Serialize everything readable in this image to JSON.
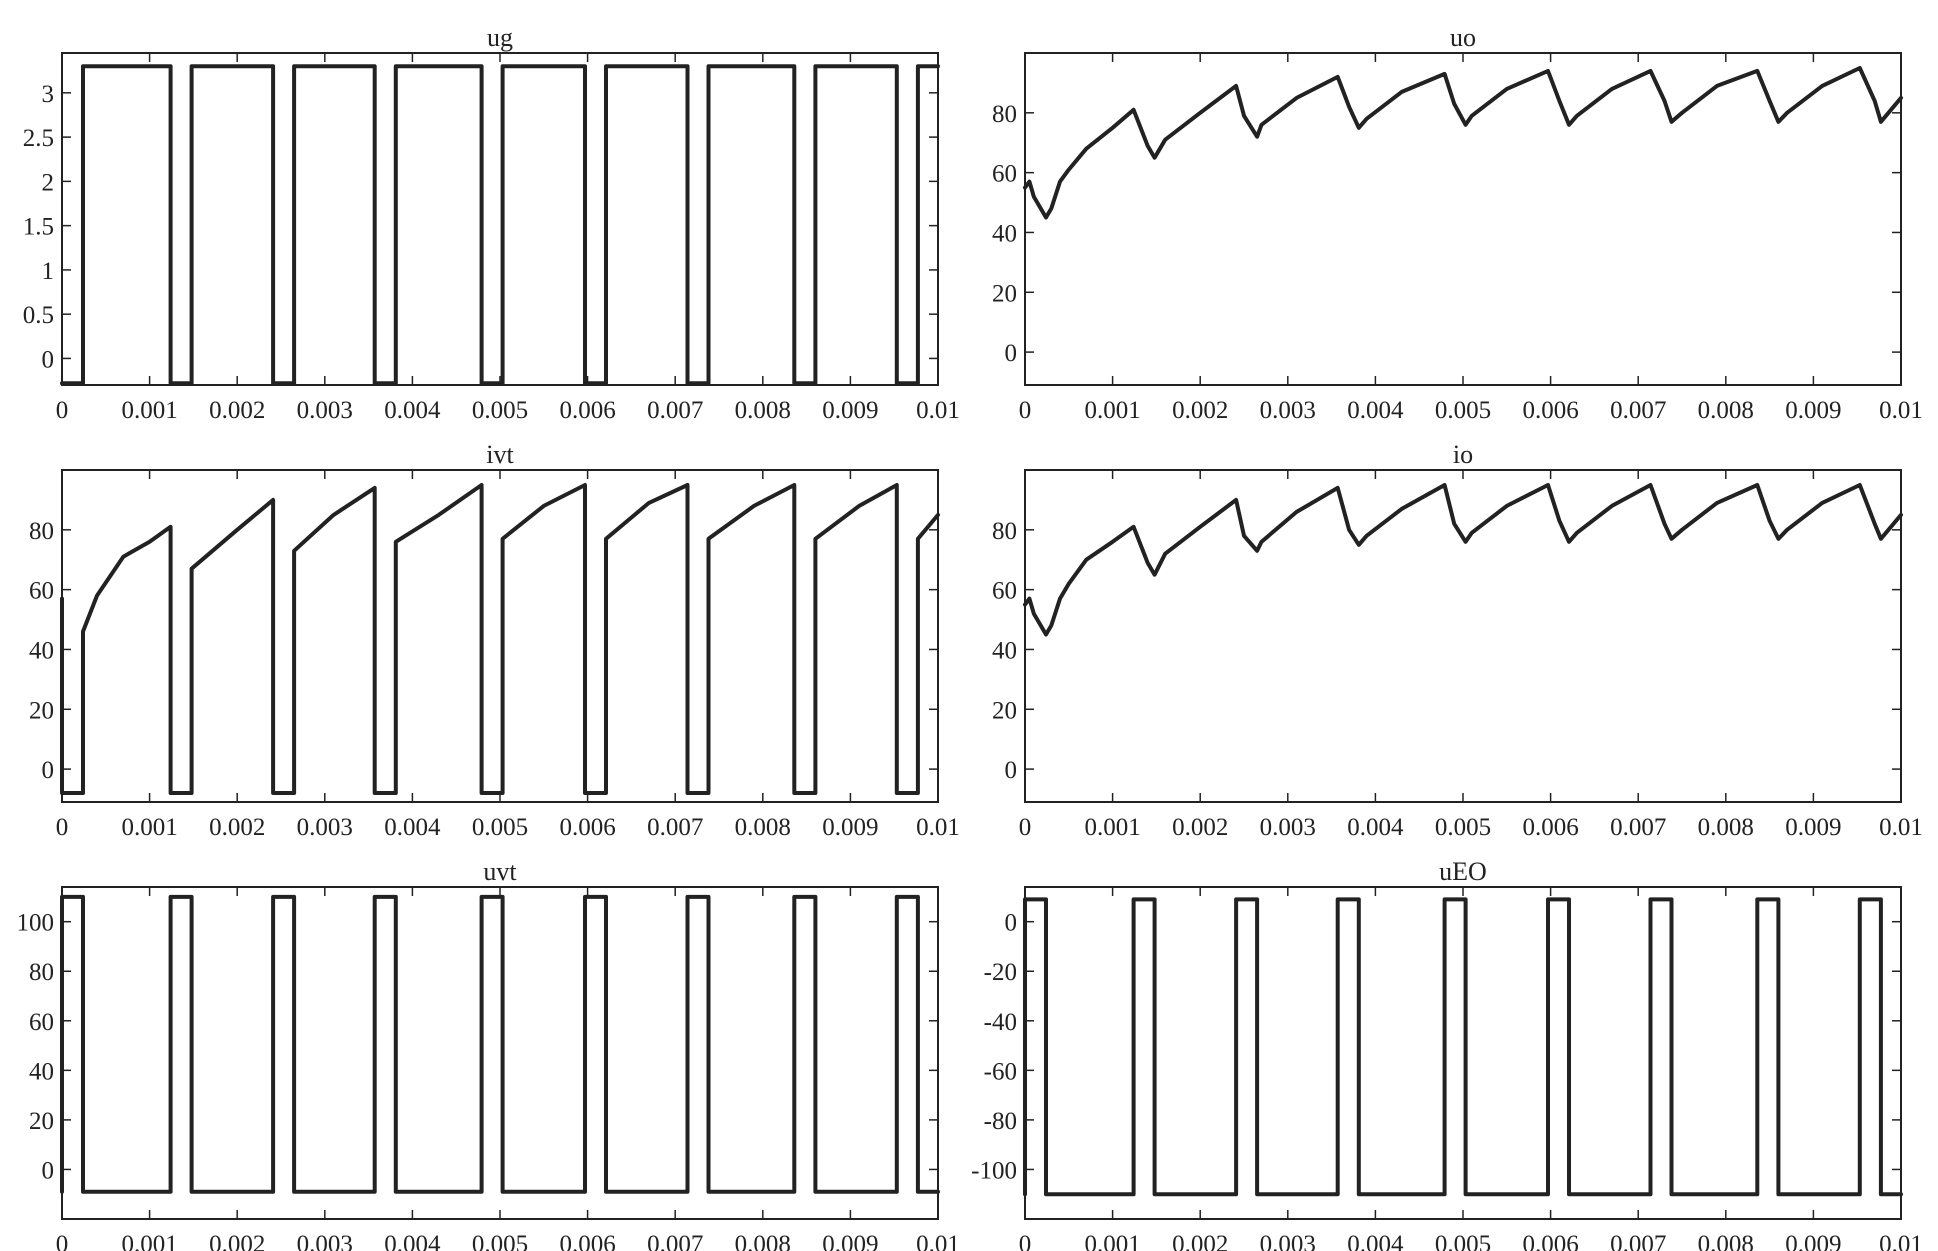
{
  "figure": {
    "line_color": "#222222",
    "background": "#ffffff"
  },
  "chart_data": [
    {
      "type": "line",
      "title": "ug",
      "xlabel": "",
      "ylabel": "",
      "xlim": [
        0,
        0.01
      ],
      "ylim": [
        -0.3,
        3.45
      ],
      "grid": false,
      "legend": "none",
      "x_ticks": [
        "0",
        "0.001",
        "0.002",
        "0.003",
        "0.004",
        "0.005",
        "0.006",
        "0.007",
        "0.008",
        "0.009",
        "0.01"
      ],
      "y_ticks": [
        "0",
        "0.5",
        "1",
        "1.5",
        "2",
        "2.5",
        "3"
      ],
      "series": [
        {
          "x": [
            0,
            0.00024,
            0.00024,
            0.00124,
            0.00124,
            0.00148,
            0.00148,
            0.00241,
            0.00241,
            0.00265,
            0.00265,
            0.00357,
            0.00357,
            0.00381,
            0.00381,
            0.00479,
            0.00479,
            0.00503,
            0.00503,
            0.00597,
            0.00597,
            0.00621,
            0.00621,
            0.00714,
            0.00714,
            0.00738,
            0.00738,
            0.00836,
            0.00836,
            0.0086,
            0.0086,
            0.00953,
            0.00953,
            0.00977,
            0.00977,
            0.01
          ],
          "y": [
            -0.28,
            -0.28,
            3.3,
            3.3,
            -0.28,
            -0.28,
            3.3,
            3.3,
            -0.28,
            -0.28,
            3.3,
            3.3,
            -0.28,
            -0.28,
            3.3,
            3.3,
            -0.28,
            -0.28,
            3.3,
            3.3,
            -0.28,
            -0.28,
            3.3,
            3.3,
            -0.28,
            -0.28,
            3.3,
            3.3,
            -0.28,
            -0.28,
            3.3,
            3.3,
            -0.28,
            -0.28,
            3.3,
            3.3
          ]
        }
      ]
    },
    {
      "type": "line",
      "title": "uo",
      "xlabel": "",
      "ylabel": "",
      "xlim": [
        0,
        0.01
      ],
      "ylim": [
        -11,
        100
      ],
      "grid": false,
      "legend": "none",
      "x_ticks": [
        "0",
        "0.001",
        "0.002",
        "0.003",
        "0.004",
        "0.005",
        "0.006",
        "0.007",
        "0.008",
        "0.009",
        "0.01"
      ],
      "y_ticks": [
        "0",
        "20",
        "40",
        "60",
        "80"
      ],
      "series": [
        {
          "x": [
            0,
            5e-05,
            0.0001,
            0.0002,
            0.00024,
            0.0003,
            0.0004,
            0.0005,
            0.0007,
            0.001,
            0.00124,
            0.0014,
            0.00148,
            0.0016,
            0.002,
            0.00241,
            0.0025,
            0.00265,
            0.0027,
            0.0031,
            0.00357,
            0.0037,
            0.00381,
            0.0039,
            0.0043,
            0.00479,
            0.0049,
            0.00503,
            0.0051,
            0.0055,
            0.00597,
            0.0061,
            0.00621,
            0.0063,
            0.0067,
            0.00714,
            0.0073,
            0.00738,
            0.0075,
            0.0079,
            0.00836,
            0.0085,
            0.0086,
            0.0087,
            0.0091,
            0.00953,
            0.0097,
            0.00977,
            0.01
          ],
          "y": [
            55,
            57,
            52,
            47,
            45,
            48,
            57,
            61,
            68,
            75,
            81,
            69,
            65,
            71,
            80,
            89,
            79,
            72,
            76,
            85,
            92,
            82,
            75,
            78,
            87,
            93,
            83,
            76,
            79,
            88,
            94,
            84,
            76,
            79,
            88,
            94,
            84,
            77,
            80,
            89,
            94,
            84,
            77,
            80,
            89,
            95,
            84,
            77,
            85
          ]
        }
      ]
    },
    {
      "type": "line",
      "title": "ivt",
      "xlabel": "",
      "ylabel": "",
      "xlim": [
        0,
        0.01
      ],
      "ylim": [
        -11,
        100
      ],
      "grid": false,
      "legend": "none",
      "x_ticks": [
        "0",
        "0.001",
        "0.002",
        "0.003",
        "0.004",
        "0.005",
        "0.006",
        "0.007",
        "0.008",
        "0.009",
        "0.01"
      ],
      "y_ticks": [
        "0",
        "20",
        "40",
        "60",
        "80"
      ],
      "series": [
        {
          "x": [
            0,
            0,
            0.00024,
            0.00024,
            0.0004,
            0.0007,
            0.001,
            0.00124,
            0.00124,
            0.00148,
            0.00148,
            0.002,
            0.00241,
            0.00241,
            0.00265,
            0.00265,
            0.0031,
            0.00357,
            0.00357,
            0.00381,
            0.00381,
            0.0043,
            0.00479,
            0.00479,
            0.00503,
            0.00503,
            0.0055,
            0.00597,
            0.00597,
            0.00621,
            0.00621,
            0.0067,
            0.00714,
            0.00714,
            0.00738,
            0.00738,
            0.0079,
            0.00836,
            0.00836,
            0.0086,
            0.0086,
            0.0091,
            0.00953,
            0.00953,
            0.00977,
            0.00977,
            0.01
          ],
          "y": [
            57,
            -8,
            -8,
            46,
            58,
            71,
            76,
            81,
            -8,
            -8,
            67,
            80,
            90,
            -8,
            -8,
            73,
            85,
            94,
            -8,
            -8,
            76,
            85,
            95,
            -8,
            -8,
            77,
            88,
            95,
            -8,
            -8,
            77,
            89,
            95,
            -8,
            -8,
            77,
            88,
            95,
            -8,
            -8,
            77,
            88,
            95,
            -8,
            -8,
            77,
            85
          ]
        }
      ]
    },
    {
      "type": "line",
      "title": "io",
      "xlabel": "",
      "ylabel": "",
      "xlim": [
        0,
        0.01
      ],
      "ylim": [
        -11,
        100
      ],
      "grid": false,
      "legend": "none",
      "x_ticks": [
        "0",
        "0.001",
        "0.002",
        "0.003",
        "0.004",
        "0.005",
        "0.006",
        "0.007",
        "0.008",
        "0.009",
        "0.01"
      ],
      "y_ticks": [
        "0",
        "20",
        "40",
        "60",
        "80"
      ],
      "series": [
        {
          "x": [
            0,
            5e-05,
            0.0001,
            0.0002,
            0.00024,
            0.0003,
            0.0004,
            0.0005,
            0.0007,
            0.001,
            0.00124,
            0.0014,
            0.00148,
            0.0016,
            0.002,
            0.00241,
            0.0025,
            0.00265,
            0.0027,
            0.0031,
            0.00357,
            0.0037,
            0.00381,
            0.0039,
            0.0043,
            0.00479,
            0.0049,
            0.00503,
            0.0051,
            0.0055,
            0.00597,
            0.0061,
            0.00621,
            0.0063,
            0.0067,
            0.00714,
            0.0073,
            0.00738,
            0.0075,
            0.0079,
            0.00836,
            0.0085,
            0.0086,
            0.0087,
            0.0091,
            0.00953,
            0.0097,
            0.00977,
            0.01
          ],
          "y": [
            55,
            57,
            52,
            47,
            45,
            48,
            57,
            62,
            70,
            76,
            81,
            69,
            65,
            72,
            81,
            90,
            78,
            73,
            76,
            86,
            94,
            80,
            75,
            78,
            87,
            95,
            82,
            76,
            79,
            88,
            95,
            83,
            76,
            79,
            88,
            95,
            82,
            77,
            80,
            89,
            95,
            83,
            77,
            80,
            89,
            95,
            82,
            77,
            85
          ]
        }
      ]
    },
    {
      "type": "line",
      "title": "uvt",
      "xlabel": "",
      "ylabel": "",
      "xlim": [
        0,
        0.01
      ],
      "ylim": [
        -20,
        114
      ],
      "grid": false,
      "legend": "none",
      "x_ticks": [
        "0",
        "0.001",
        "0.002",
        "0.003",
        "0.004",
        "0.005",
        "0.006",
        "0.007",
        "0.008",
        "0.009",
        "0.01"
      ],
      "y_ticks": [
        "0",
        "20",
        "40",
        "60",
        "80",
        "100"
      ],
      "series": [
        {
          "x": [
            0,
            0,
            0.00024,
            0.00024,
            0.00124,
            0.00124,
            0.00148,
            0.00148,
            0.00241,
            0.00241,
            0.00265,
            0.00265,
            0.00357,
            0.00357,
            0.00381,
            0.00381,
            0.00479,
            0.00479,
            0.00503,
            0.00503,
            0.00597,
            0.00597,
            0.00621,
            0.00621,
            0.00714,
            0.00714,
            0.00738,
            0.00738,
            0.00836,
            0.00836,
            0.0086,
            0.0086,
            0.00953,
            0.00953,
            0.00977,
            0.00977,
            0.01
          ],
          "y": [
            -9,
            110,
            110,
            -9,
            -9,
            110,
            110,
            -9,
            -9,
            110,
            110,
            -9,
            -9,
            110,
            110,
            -9,
            -9,
            110,
            110,
            -9,
            -9,
            110,
            110,
            -9,
            -9,
            110,
            110,
            -9,
            -9,
            110,
            110,
            -9,
            -9,
            110,
            110,
            -9,
            -9
          ]
        }
      ]
    },
    {
      "type": "line",
      "title": "uEO",
      "xlabel": "",
      "ylabel": "",
      "xlim": [
        0,
        0.01
      ],
      "ylim": [
        -120,
        14
      ],
      "grid": false,
      "legend": "none",
      "x_ticks": [
        "0",
        "0.001",
        "0.002",
        "0.003",
        "0.004",
        "0.005",
        "0.006",
        "0.007",
        "0.008",
        "0.009",
        "0.01"
      ],
      "y_ticks": [
        "-100",
        "-80",
        "-60",
        "-40",
        "-20",
        "0"
      ],
      "series": [
        {
          "x": [
            0,
            0,
            0.00024,
            0.00024,
            0.00124,
            0.00124,
            0.00148,
            0.00148,
            0.00241,
            0.00241,
            0.00265,
            0.00265,
            0.00357,
            0.00357,
            0.00381,
            0.00381,
            0.00479,
            0.00479,
            0.00503,
            0.00503,
            0.00597,
            0.00597,
            0.00621,
            0.00621,
            0.00714,
            0.00714,
            0.00738,
            0.00738,
            0.00836,
            0.00836,
            0.0086,
            0.0086,
            0.00953,
            0.00953,
            0.00977,
            0.00977,
            0.01
          ],
          "y": [
            -110,
            9,
            9,
            -110,
            -110,
            9,
            9,
            -110,
            -110,
            9,
            9,
            -110,
            -110,
            9,
            9,
            -110,
            -110,
            9,
            9,
            -110,
            -110,
            9,
            9,
            -110,
            -110,
            9,
            9,
            -110,
            -110,
            9,
            9,
            -110,
            -110,
            9,
            9,
            -110,
            -110
          ]
        }
      ]
    }
  ]
}
